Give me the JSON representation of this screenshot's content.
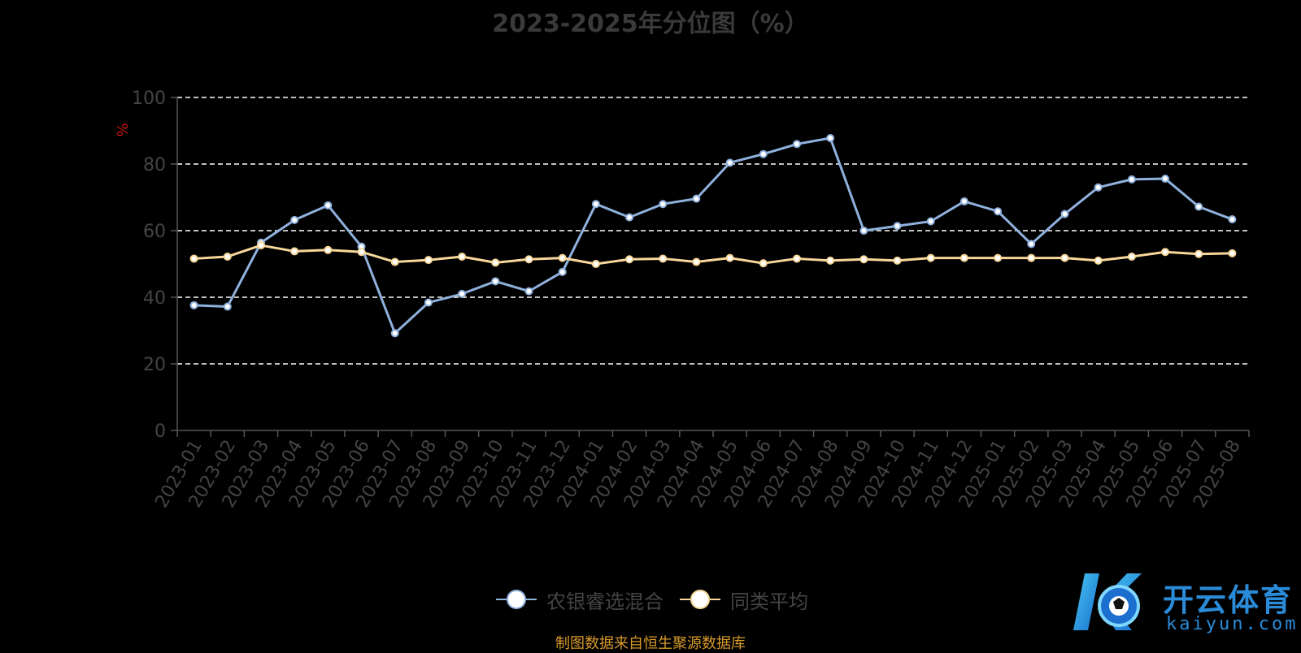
{
  "chart_data": {
    "type": "line",
    "title": "2023-2025年分位图（%）",
    "ylabel": "%",
    "xlabel": "",
    "ylim": [
      0,
      100
    ],
    "yticks": [
      0,
      20,
      40,
      60,
      80,
      100
    ],
    "grid": "horizontal dashed",
    "legend_position": "bottom-center",
    "categories": [
      "2023-01",
      "2023-02",
      "2023-03",
      "2023-04",
      "2023-05",
      "2023-06",
      "2023-07",
      "2023-08",
      "2023-09",
      "2023-10",
      "2023-11",
      "2023-12",
      "2024-01",
      "2024-02",
      "2024-03",
      "2024-04",
      "2024-05",
      "2024-06",
      "2024-07",
      "2024-08",
      "2024-09",
      "2024-10",
      "2024-11",
      "2024-12",
      "2025-01",
      "2025-02",
      "2025-03",
      "2025-04",
      "2025-05",
      "2025-06",
      "2025-07",
      "2025-08"
    ],
    "series": [
      {
        "name": "农银睿选混合",
        "color": "#8fb1dd",
        "values": [
          37.6,
          37.2,
          56.4,
          63.2,
          67.6,
          55.2,
          29.2,
          38.4,
          41.0,
          44.8,
          41.8,
          47.6,
          68.0,
          64.0,
          68.0,
          69.6,
          80.4,
          83.0,
          86.0,
          87.8,
          60.0,
          61.4,
          62.8,
          68.8,
          65.8,
          56.0,
          65.0,
          73.0,
          75.4,
          75.6,
          67.2,
          63.4
        ]
      },
      {
        "name": "同类平均",
        "color": "#f7d79a",
        "values": [
          51.6,
          52.2,
          55.6,
          53.8,
          54.2,
          53.6,
          50.6,
          51.2,
          52.2,
          50.4,
          51.4,
          51.8,
          50.0,
          51.4,
          51.6,
          50.6,
          51.8,
          50.2,
          51.6,
          51.0,
          51.4,
          51.0,
          51.8,
          51.8,
          51.8,
          51.8,
          51.8,
          51.0,
          52.2,
          53.6,
          53.0,
          53.2
        ]
      }
    ]
  },
  "source_note": "制图数据来自恒生聚源数据库",
  "watermark": {
    "brand": "开云体育",
    "url": "kaiyun.com"
  }
}
